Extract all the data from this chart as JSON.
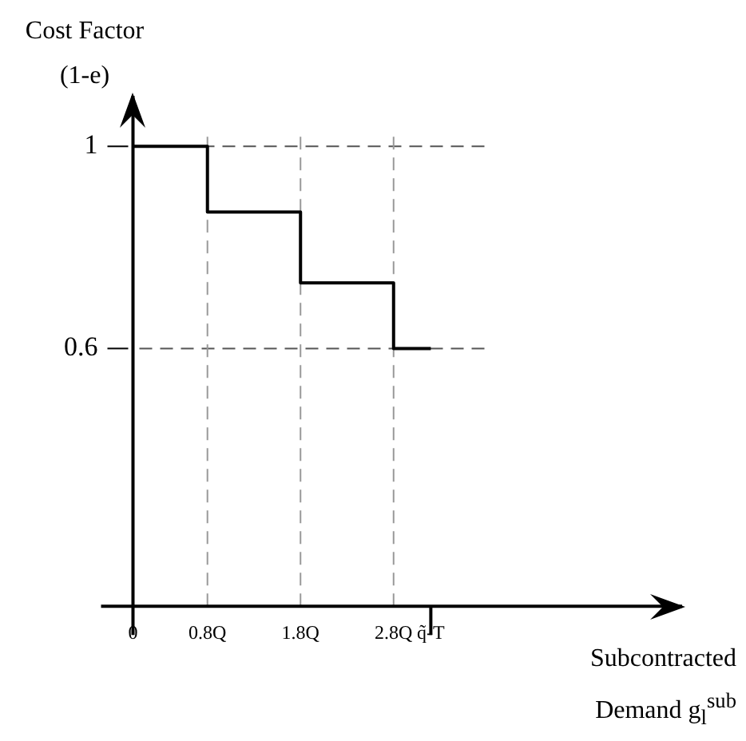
{
  "chart_data": {
    "type": "step",
    "ylabel": "Cost Factor (1-e)",
    "xlabel": "Subcontracted Demand g$_{l}$$^{sub}$",
    "x": [
      0,
      0.8,
      1.8,
      2.8,
      3.2
    ],
    "values": [
      1,
      0.87,
      0.73,
      0.6,
      0.6
    ],
    "color": "#000000",
    "xlim": [
      0,
      5.9
    ],
    "ylim": [
      0.09,
      1.1
    ],
    "xticks": [
      0,
      {
        "value": 0.8,
        "label": "0.8Q"
      },
      {
        "value": 1.8,
        "label": "1.8Q"
      },
      {
        "value": 2.8,
        "label": "2.8Q"
      },
      {
        "value": 3.2,
        "label": "q̃-T"
      }
    ],
    "yticks": [
      0.6,
      1
    ],
    "ref_lines": [
      {
        "axis": "y",
        "value": 1,
        "color": "#555555",
        "line_style": "dashed"
      },
      {
        "axis": "y",
        "value": 0.6,
        "color": "#555555",
        "line_style": "dashed"
      },
      {
        "axis": "x",
        "value": 0.8,
        "color": "#999999",
        "line_style": "dashed"
      },
      {
        "axis": "x",
        "value": 1.8,
        "color": "#999999",
        "line_style": "dashed"
      },
      {
        "axis": "x",
        "value": 2.8,
        "color": "#999999",
        "line_style": "dashed"
      }
    ],
    "grid": false,
    "legend": false,
    "marker": "none",
    "line_style": "solid"
  }
}
